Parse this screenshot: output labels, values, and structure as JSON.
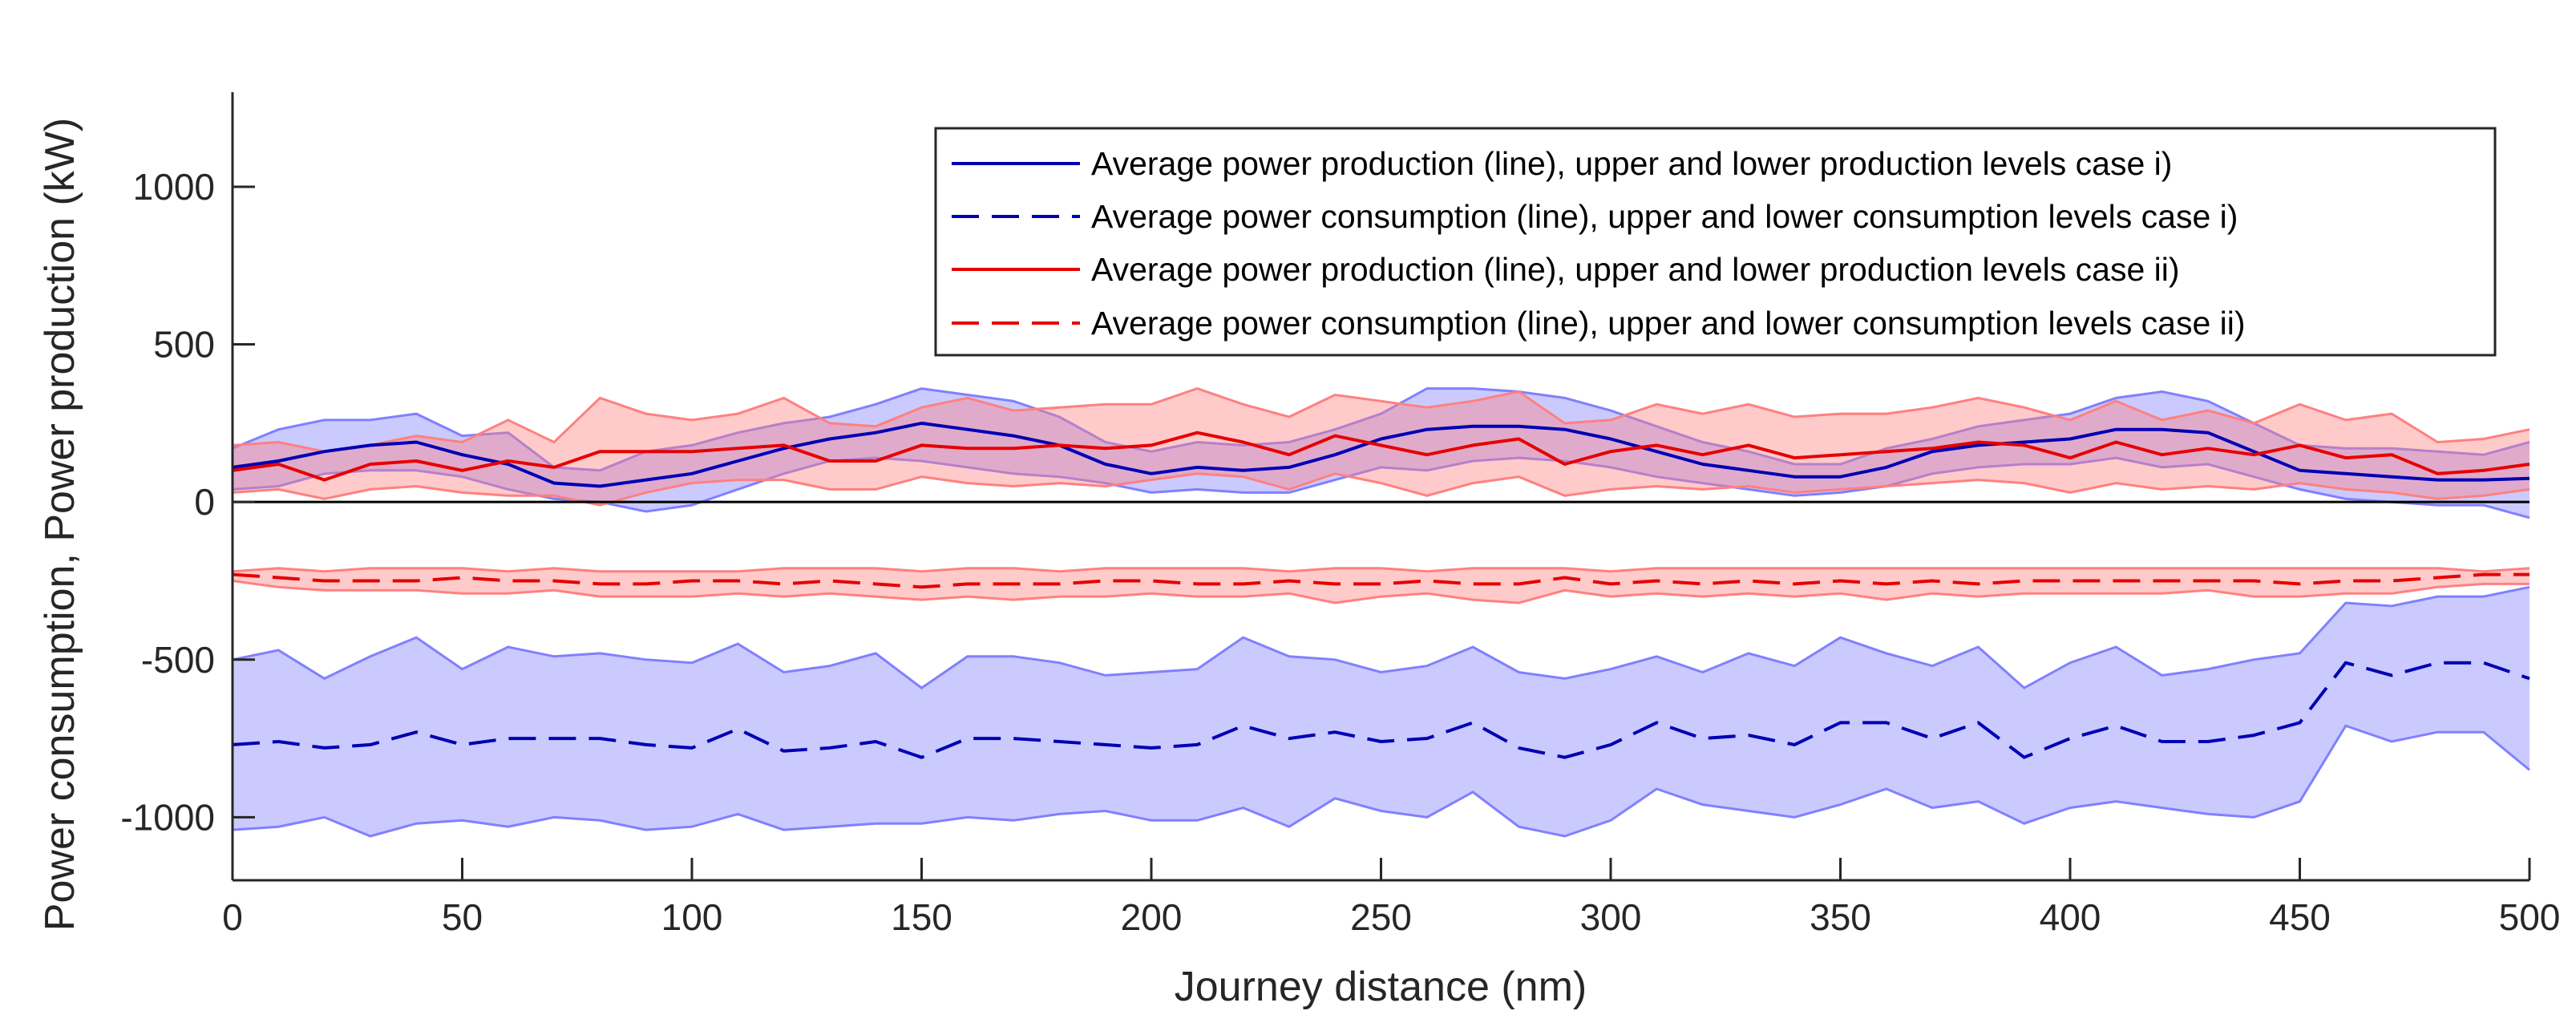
{
  "chart_data": {
    "type": "line",
    "title": "",
    "xlabel": "Journey distance (nm)",
    "ylabel": "Power consumption, Power production (kW)",
    "xlim": [
      0,
      500
    ],
    "ylim": [
      -1200,
      1300
    ],
    "xticks": [
      0,
      50,
      100,
      150,
      200,
      250,
      300,
      350,
      400,
      450,
      500
    ],
    "xtick_labels": [
      "0",
      "50",
      "100",
      "150",
      "200",
      "250",
      "300",
      "350",
      "400",
      "450",
      "500"
    ],
    "yticks": [
      -1000,
      -500,
      0,
      500,
      1000
    ],
    "ytick_labels": [
      "-1000",
      "-500",
      "0",
      "500",
      "1000"
    ],
    "grid": false,
    "zero_line": true,
    "legend_position": "top-right",
    "x": [
      0,
      10,
      20,
      30,
      40,
      50,
      60,
      70,
      80,
      90,
      100,
      110,
      120,
      130,
      140,
      150,
      160,
      170,
      180,
      190,
      200,
      210,
      220,
      230,
      240,
      250,
      260,
      270,
      280,
      290,
      300,
      310,
      320,
      330,
      340,
      350,
      360,
      370,
      380,
      390,
      400,
      410,
      420,
      430,
      440,
      450,
      460,
      470,
      480,
      490,
      500
    ],
    "series": [
      {
        "name": "Average power production (line), upper and lower production levels case i)",
        "color": "#0000b4",
        "band_color": "#8080ff",
        "line_style": "solid",
        "mean": [
          110,
          130,
          160,
          180,
          190,
          150,
          120,
          60,
          50,
          70,
          90,
          130,
          170,
          200,
          220,
          250,
          230,
          210,
          180,
          120,
          90,
          110,
          100,
          110,
          150,
          200,
          230,
          240,
          240,
          230,
          200,
          160,
          120,
          100,
          80,
          80,
          110,
          160,
          180,
          190,
          200,
          230,
          230,
          220,
          160,
          100,
          90,
          80,
          70,
          70,
          75
        ],
        "upper": [
          170,
          230,
          260,
          260,
          280,
          210,
          220,
          110,
          100,
          160,
          180,
          220,
          250,
          270,
          310,
          360,
          340,
          320,
          270,
          190,
          160,
          190,
          180,
          190,
          230,
          280,
          360,
          360,
          350,
          330,
          290,
          240,
          190,
          160,
          120,
          120,
          170,
          200,
          240,
          260,
          280,
          330,
          350,
          320,
          250,
          180,
          170,
          170,
          160,
          150,
          190
        ],
        "lower": [
          40,
          50,
          90,
          100,
          100,
          80,
          40,
          10,
          0,
          -30,
          -10,
          40,
          90,
          130,
          140,
          130,
          110,
          90,
          80,
          60,
          30,
          40,
          30,
          30,
          70,
          110,
          100,
          130,
          140,
          130,
          110,
          80,
          60,
          40,
          20,
          30,
          50,
          90,
          110,
          120,
          120,
          140,
          110,
          120,
          80,
          40,
          10,
          0,
          -10,
          -10,
          -50
        ]
      },
      {
        "name": "Average power consumption (line), upper and lower consumption levels case i)",
        "color": "#0000b4",
        "band_color": "#8080ff",
        "line_style": "dashed",
        "mean": [
          -770,
          -760,
          -780,
          -770,
          -730,
          -770,
          -750,
          -750,
          -750,
          -770,
          -780,
          -720,
          -790,
          -780,
          -760,
          -810,
          -750,
          -750,
          -760,
          -770,
          -780,
          -770,
          -710,
          -750,
          -730,
          -760,
          -750,
          -700,
          -780,
          -810,
          -770,
          -700,
          -750,
          -740,
          -770,
          -700,
          -700,
          -750,
          -700,
          -810,
          -750,
          -710,
          -760,
          -760,
          -740,
          -700,
          -510,
          -550,
          -510,
          -510,
          -560
        ],
        "upper": [
          -500,
          -470,
          -560,
          -490,
          -430,
          -530,
          -460,
          -490,
          -480,
          -500,
          -510,
          -450,
          -540,
          -520,
          -480,
          -590,
          -490,
          -490,
          -510,
          -550,
          -540,
          -530,
          -430,
          -490,
          -500,
          -540,
          -520,
          -460,
          -540,
          -560,
          -530,
          -490,
          -540,
          -480,
          -520,
          -430,
          -480,
          -520,
          -460,
          -590,
          -510,
          -460,
          -550,
          -530,
          -500,
          -480,
          -320,
          -330,
          -300,
          -300,
          -270
        ],
        "lower": [
          -1040,
          -1030,
          -1000,
          -1060,
          -1020,
          -1010,
          -1030,
          -1000,
          -1010,
          -1040,
          -1030,
          -990,
          -1040,
          -1030,
          -1020,
          -1020,
          -1000,
          -1010,
          -990,
          -980,
          -1010,
          -1010,
          -970,
          -1030,
          -940,
          -980,
          -1000,
          -920,
          -1030,
          -1060,
          -1010,
          -910,
          -960,
          -980,
          -1000,
          -960,
          -910,
          -970,
          -950,
          -1020,
          -970,
          -950,
          -970,
          -990,
          -1000,
          -950,
          -710,
          -760,
          -730,
          -730,
          -850
        ]
      },
      {
        "name": "Average power production (line), upper and lower production levels case ii)",
        "color": "#e60000",
        "band_color": "#ff8080",
        "line_style": "solid",
        "mean": [
          100,
          120,
          70,
          120,
          130,
          100,
          130,
          110,
          160,
          160,
          160,
          170,
          180,
          130,
          130,
          180,
          170,
          170,
          180,
          170,
          180,
          220,
          190,
          150,
          210,
          180,
          150,
          180,
          200,
          120,
          160,
          180,
          150,
          180,
          140,
          150,
          160,
          170,
          190,
          180,
          140,
          190,
          150,
          170,
          150,
          180,
          140,
          150,
          90,
          100,
          120
        ],
        "upper": [
          180,
          190,
          160,
          180,
          210,
          190,
          260,
          190,
          330,
          280,
          260,
          280,
          330,
          250,
          240,
          300,
          330,
          290,
          300,
          310,
          310,
          360,
          310,
          270,
          340,
          320,
          300,
          320,
          350,
          250,
          260,
          310,
          280,
          310,
          270,
          280,
          280,
          300,
          330,
          300,
          260,
          320,
          260,
          290,
          250,
          310,
          260,
          280,
          190,
          200,
          230
        ],
        "lower": [
          30,
          40,
          10,
          40,
          50,
          30,
          20,
          20,
          -10,
          30,
          60,
          70,
          70,
          40,
          40,
          80,
          60,
          50,
          60,
          50,
          70,
          90,
          80,
          40,
          90,
          60,
          20,
          60,
          80,
          20,
          40,
          50,
          40,
          50,
          30,
          40,
          50,
          60,
          70,
          60,
          30,
          60,
          40,
          50,
          40,
          60,
          40,
          30,
          10,
          20,
          40
        ]
      },
      {
        "name": "Average power consumption (line), upper and lower consumption levels case ii)",
        "color": "#e60000",
        "band_color": "#ff8080",
        "line_style": "dashed",
        "mean": [
          -230,
          -240,
          -250,
          -250,
          -250,
          -240,
          -250,
          -250,
          -260,
          -260,
          -250,
          -250,
          -260,
          -250,
          -260,
          -270,
          -260,
          -260,
          -260,
          -250,
          -250,
          -260,
          -260,
          -250,
          -260,
          -260,
          -250,
          -260,
          -260,
          -240,
          -260,
          -250,
          -260,
          -250,
          -260,
          -250,
          -260,
          -250,
          -260,
          -250,
          -250,
          -250,
          -250,
          -250,
          -250,
          -260,
          -250,
          -250,
          -240,
          -230,
          -230
        ],
        "upper": [
          -220,
          -210,
          -220,
          -210,
          -210,
          -210,
          -220,
          -210,
          -220,
          -220,
          -220,
          -220,
          -210,
          -210,
          -210,
          -220,
          -210,
          -210,
          -220,
          -210,
          -210,
          -210,
          -210,
          -220,
          -210,
          -210,
          -220,
          -210,
          -210,
          -210,
          -220,
          -210,
          -210,
          -210,
          -210,
          -210,
          -210,
          -210,
          -210,
          -210,
          -210,
          -210,
          -210,
          -210,
          -210,
          -210,
          -210,
          -210,
          -210,
          -220,
          -210
        ],
        "lower": [
          -250,
          -270,
          -280,
          -280,
          -280,
          -290,
          -290,
          -280,
          -300,
          -300,
          -300,
          -290,
          -300,
          -290,
          -300,
          -310,
          -300,
          -310,
          -300,
          -300,
          -290,
          -300,
          -300,
          -290,
          -320,
          -300,
          -290,
          -310,
          -320,
          -280,
          -300,
          -290,
          -300,
          -290,
          -300,
          -290,
          -310,
          -290,
          -300,
          -290,
          -290,
          -290,
          -290,
          -280,
          -300,
          -300,
          -290,
          -290,
          -270,
          -260,
          -260
        ]
      }
    ]
  }
}
